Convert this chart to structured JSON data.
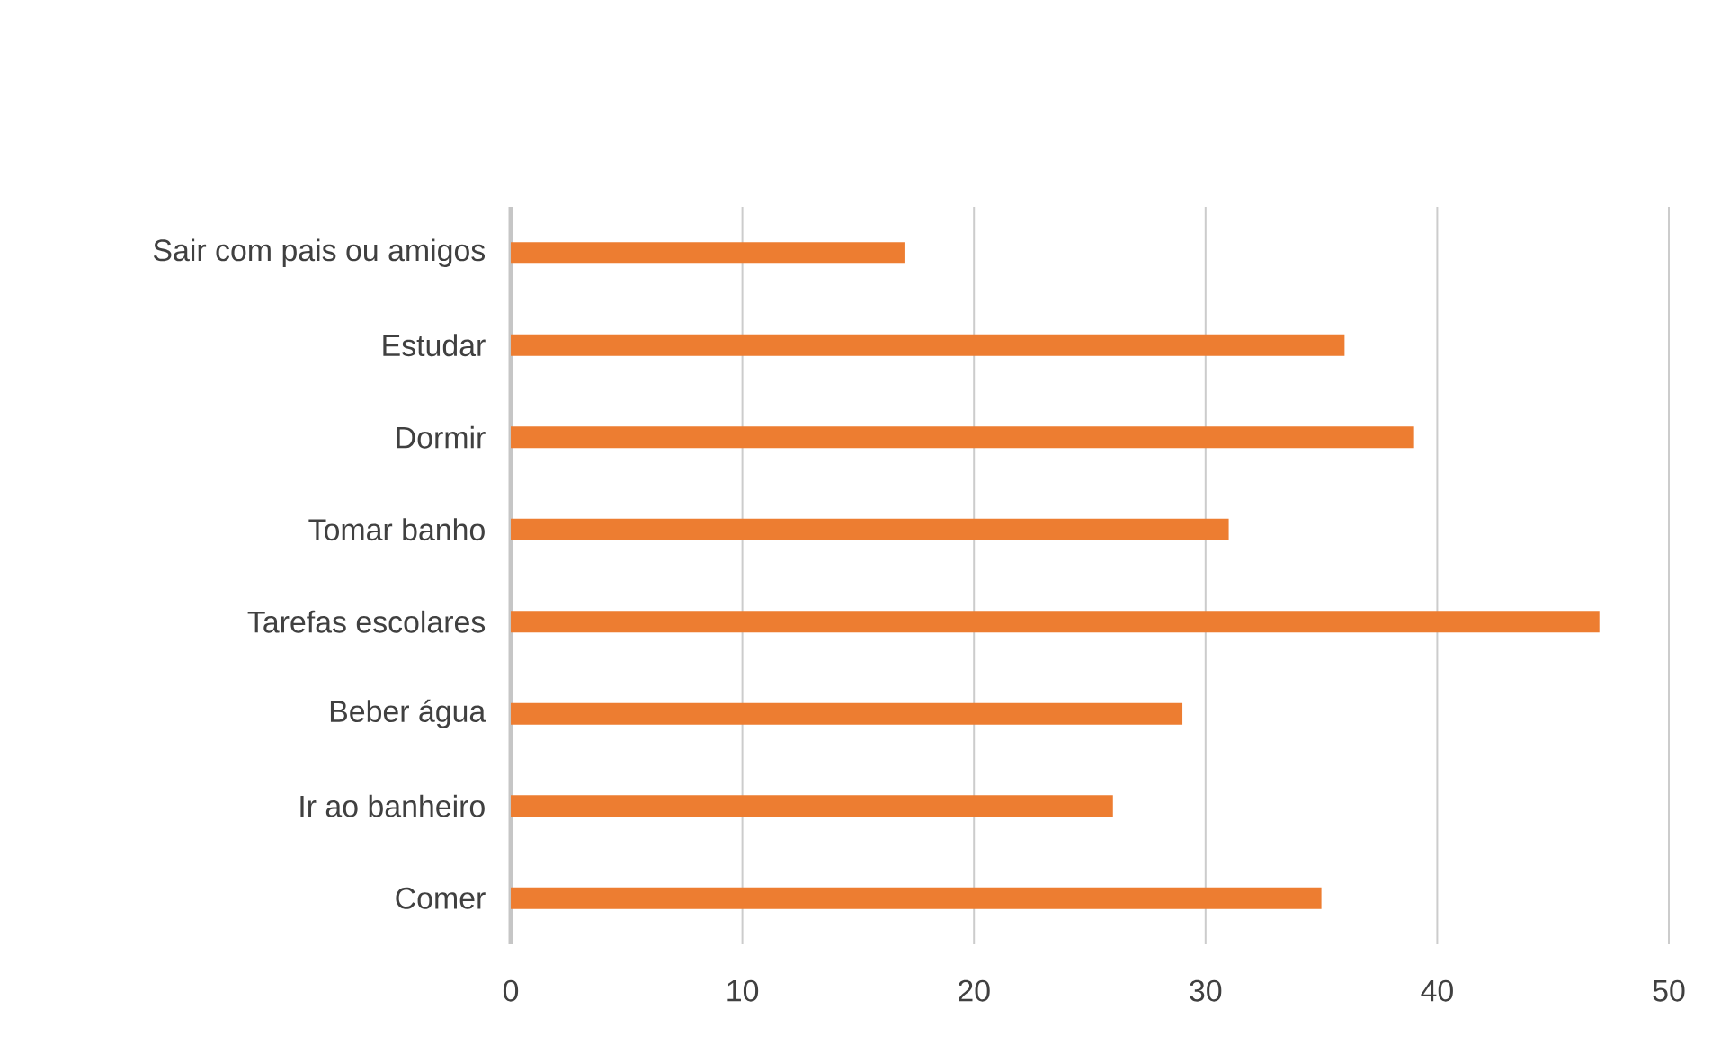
{
  "chart_data": {
    "type": "bar",
    "orientation": "horizontal",
    "categories": [
      "Sair com pais ou amigos",
      "Estudar",
      "Dormir",
      "Tomar banho",
      "Tarefas escolares",
      "Beber água",
      "Ir ao banheiro",
      "Comer"
    ],
    "values": [
      17,
      36,
      39,
      31,
      47,
      29,
      26,
      35
    ],
    "color": "#ed7d31",
    "xlim": [
      0,
      50
    ],
    "xticks": [
      0,
      10,
      20,
      30,
      40,
      50
    ],
    "grid": "x"
  }
}
